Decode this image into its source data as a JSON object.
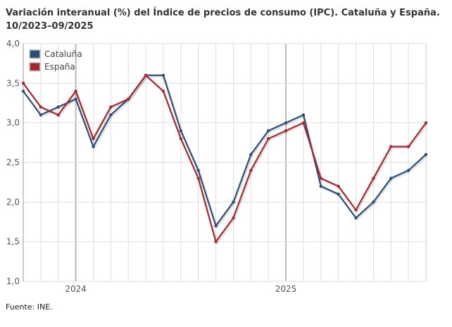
{
  "title_line1": "Variación interanual (%) del Índice de precios de consumo (IPC). Cataluña y España.",
  "title_line2": "10/2023–09/2025",
  "source": "Fuente: INE.",
  "chart_data": {
    "type": "line",
    "x": [
      "10/2023",
      "11/2023",
      "12/2023",
      "01/2024",
      "02/2024",
      "03/2024",
      "04/2024",
      "05/2024",
      "06/2024",
      "07/2024",
      "08/2024",
      "09/2024",
      "10/2024",
      "11/2024",
      "12/2024",
      "01/2025",
      "02/2025",
      "03/2025",
      "04/2025",
      "05/2025",
      "06/2025",
      "07/2025",
      "08/2025",
      "09/2025"
    ],
    "x_tick_labels": [
      {
        "index": 3,
        "label": "2024"
      },
      {
        "index": 15,
        "label": "2025"
      }
    ],
    "y_tick_labels": [
      "1,0",
      "1,5",
      "2,0",
      "2,5",
      "3,0",
      "3,5",
      "4,0"
    ],
    "ylim": [
      1.0,
      4.0
    ],
    "grid": true,
    "legend_position": "top-left",
    "series": [
      {
        "name": "Cataluña",
        "color": "#2d4f75",
        "values": [
          3.4,
          3.1,
          3.2,
          3.3,
          2.7,
          3.1,
          3.3,
          3.6,
          3.6,
          2.9,
          2.4,
          1.7,
          2.0,
          2.6,
          2.9,
          3.0,
          3.1,
          2.2,
          2.1,
          1.8,
          2.0,
          2.3,
          2.4,
          2.6
        ]
      },
      {
        "name": "España",
        "color": "#a8282f",
        "values": [
          3.5,
          3.2,
          3.1,
          3.4,
          2.8,
          3.2,
          3.3,
          3.6,
          3.4,
          2.8,
          2.3,
          1.5,
          1.8,
          2.4,
          2.8,
          2.9,
          3.0,
          2.3,
          2.2,
          1.9,
          2.3,
          2.7,
          2.7,
          3.0
        ]
      }
    ]
  }
}
